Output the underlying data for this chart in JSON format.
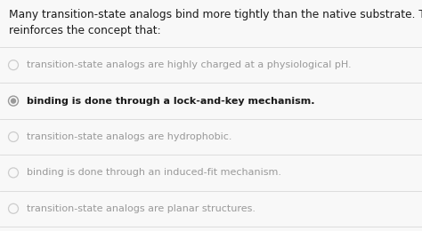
{
  "background_color": "#f8f8f8",
  "question_text_line1": "Many transition-state analogs bind more tightly than the native substrate. This fact",
  "question_text_line2": "reinforces the concept that:",
  "options": [
    {
      "text": "transition-state analogs are highly charged at a physiological pH.",
      "selected": false,
      "bold": false
    },
    {
      "text": "binding is done through a lock-and-key mechanism.",
      "selected": true,
      "bold": true
    },
    {
      "text": "transition-state analogs are hydrophobic.",
      "selected": false,
      "bold": false
    },
    {
      "text": "binding is done through an induced-fit mechanism.",
      "selected": false,
      "bold": false
    },
    {
      "text": "transition-state analogs are planar structures.",
      "selected": false,
      "bold": false
    }
  ],
  "question_color": "#1a1a1a",
  "option_text_color": "#999999",
  "selected_text_color": "#1a1a1a",
  "divider_color": "#dddddd",
  "radio_unselected_color": "#cccccc",
  "radio_selected_fill": "#999999",
  "radio_selected_edge": "#999999",
  "question_fontsize": 8.8,
  "option_fontsize": 8.0,
  "fig_width": 4.74,
  "fig_height": 2.6,
  "dpi": 100
}
